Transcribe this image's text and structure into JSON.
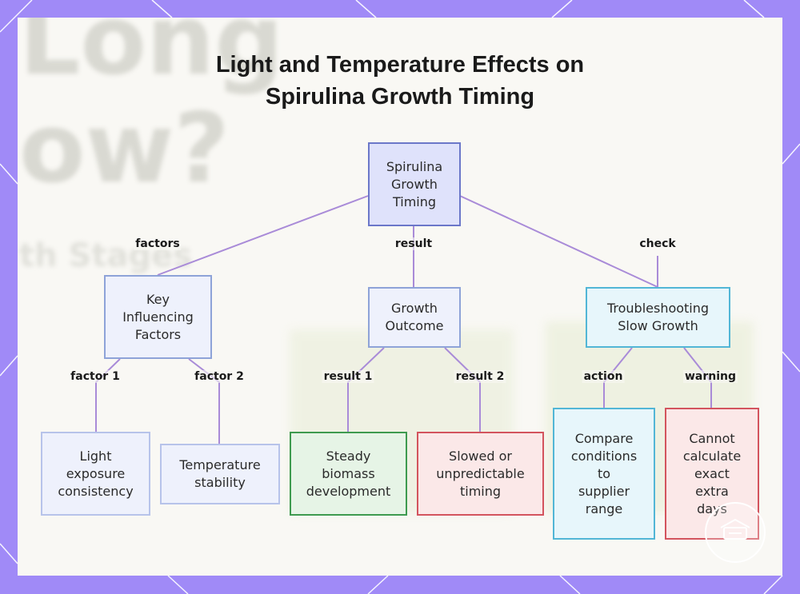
{
  "title_lines": [
    "Light and Temperature Effects on",
    "Spirulina Growth Timing"
  ],
  "nodes": {
    "root": {
      "label": "Spirulina\nGrowth\nTiming"
    },
    "factors": {
      "label": "Key\nInfluencing\nFactors"
    },
    "outcome": {
      "label": "Growth\nOutcome"
    },
    "troubleshoot": {
      "label": "Troubleshooting\nSlow Growth"
    },
    "light": {
      "label": "Light\nexposure\nconsistency"
    },
    "temperature": {
      "label": "Temperature\nstability"
    },
    "steady": {
      "label": "Steady\nbiomass\ndevelopment"
    },
    "slowed": {
      "label": "Slowed or\nunpredictable\ntiming"
    },
    "compare": {
      "label": "Compare\nconditions\nto\nsupplier\nrange"
    },
    "warning": {
      "label": "Cannot\ncalculate\nexact\nextra\ndays"
    }
  },
  "edge_labels": {
    "factors": "factors",
    "result": "result",
    "check": "check",
    "factor1": "factor 1",
    "factor2": "factor 2",
    "result1": "result 1",
    "result2": "result 2",
    "action": "action",
    "warning": "warning"
  },
  "background_text": [
    "Long",
    "ow?",
    "th Stages"
  ],
  "colors": {
    "frame": "#a08af7",
    "edge": "#a98bd8",
    "blue_fill": "#dfe2fb",
    "blue_border": "#6b77c9",
    "lightblue_fill": "#eef1fc",
    "lightblue_border": "#8ea3d8",
    "green_fill": "#e6f4e6",
    "green_border": "#3e9a4f",
    "red_fill": "#fbe8e8",
    "red_border": "#d3545e",
    "cyan_fill": "#e7f6fb",
    "cyan_border": "#52b6d6"
  }
}
